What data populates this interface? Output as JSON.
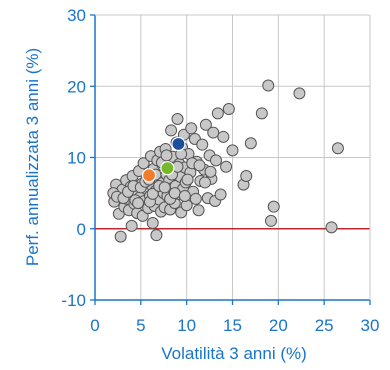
{
  "chart_data": {
    "type": "scatter",
    "xlabel": "Volatilità 3 anni (%)",
    "ylabel": "Perf. annualizzata 3 anni (%)",
    "xlim": [
      0,
      30
    ],
    "ylim": [
      -10,
      30
    ],
    "xticks": [
      0,
      5,
      10,
      15,
      20,
      25,
      30
    ],
    "yticks": [
      -10,
      0,
      10,
      20,
      30
    ],
    "grid": true,
    "reference_line": {
      "y": 0,
      "color": "#c0282d"
    },
    "colors": {
      "axis": "#1a75c9",
      "grid": "#c8c8c8",
      "point_fill": "#c8c8c8",
      "point_stroke": "#555555"
    },
    "series": [
      {
        "color": "#c8c8c8",
        "points": [
          [
            2.1,
            3.8
          ],
          [
            2.3,
            6.2
          ],
          [
            2.5,
            4.9
          ],
          [
            2.6,
            2.1
          ],
          [
            2.8,
            -1.1
          ],
          [
            3.0,
            5.5
          ],
          [
            3.2,
            3.1
          ],
          [
            3.4,
            6.8
          ],
          [
            3.5,
            4.2
          ],
          [
            3.7,
            2.6
          ],
          [
            3.9,
            5.9
          ],
          [
            4.0,
            0.4
          ],
          [
            4.1,
            7.4
          ],
          [
            4.3,
            3.5
          ],
          [
            4.5,
            5.1
          ],
          [
            4.6,
            2.2
          ],
          [
            4.8,
            8.1
          ],
          [
            4.9,
            4.4
          ],
          [
            5.1,
            6.3
          ],
          [
            5.2,
            1.8
          ],
          [
            5.3,
            9.2
          ],
          [
            5.4,
            3.9
          ],
          [
            5.6,
            5.6
          ],
          [
            5.7,
            7.1
          ],
          [
            5.8,
            2.9
          ],
          [
            6.0,
            4.6
          ],
          [
            6.1,
            10.2
          ],
          [
            6.2,
            6.1
          ],
          [
            6.3,
            0.8
          ],
          [
            6.4,
            8.4
          ],
          [
            6.5,
            3.2
          ],
          [
            6.6,
            5.3
          ],
          [
            6.7,
            -0.9
          ],
          [
            6.8,
            9.6
          ],
          [
            6.9,
            7.2
          ],
          [
            7.0,
            4.1
          ],
          [
            7.1,
            10.8
          ],
          [
            7.2,
            2.4
          ],
          [
            7.3,
            6.4
          ],
          [
            7.4,
            8.9
          ],
          [
            7.5,
            5.0
          ],
          [
            7.6,
            3.0
          ],
          [
            7.7,
            11.2
          ],
          [
            7.8,
            7.6
          ],
          [
            7.9,
            4.6
          ],
          [
            8.0,
            9.8
          ],
          [
            8.1,
            6.8
          ],
          [
            8.2,
            2.7
          ],
          [
            8.3,
            13.8
          ],
          [
            8.4,
            5.7
          ],
          [
            8.5,
            10.1
          ],
          [
            8.6,
            8.2
          ],
          [
            8.7,
            3.6
          ],
          [
            8.8,
            6.0
          ],
          [
            8.9,
            12.1
          ],
          [
            9.0,
            15.4
          ],
          [
            9.1,
            4.9
          ],
          [
            9.2,
            9.1
          ],
          [
            9.3,
            7.3
          ],
          [
            9.4,
            2.3
          ],
          [
            9.5,
            11.4
          ],
          [
            9.6,
            5.6
          ],
          [
            9.7,
            13.2
          ],
          [
            9.8,
            8.6
          ],
          [
            9.9,
            6.5
          ],
          [
            10.0,
            3.3
          ],
          [
            10.2,
            10.5
          ],
          [
            10.4,
            7.9
          ],
          [
            10.5,
            14.1
          ],
          [
            10.7,
            5.2
          ],
          [
            10.9,
            12.6
          ],
          [
            11.1,
            9.4
          ],
          [
            11.3,
            2.6
          ],
          [
            11.5,
            6.7
          ],
          [
            11.7,
            11.8
          ],
          [
            11.9,
            8.3
          ],
          [
            12.1,
            14.6
          ],
          [
            12.3,
            4.3
          ],
          [
            12.5,
            10.3
          ],
          [
            12.7,
            7.0
          ],
          [
            12.9,
            13.5
          ],
          [
            13.1,
            3.9
          ],
          [
            13.4,
            16.2
          ],
          [
            13.7,
            4.8
          ],
          [
            14.0,
            12.9
          ],
          [
            14.3,
            8.7
          ],
          [
            14.6,
            16.8
          ],
          [
            15.0,
            11.0
          ],
          [
            16.2,
            6.2
          ],
          [
            16.5,
            7.4
          ],
          [
            17.0,
            12.0
          ],
          [
            18.2,
            16.2
          ],
          [
            18.9,
            20.1
          ],
          [
            19.2,
            1.1
          ],
          [
            19.5,
            3.1
          ],
          [
            22.3,
            19.0
          ],
          [
            25.8,
            0.2
          ],
          [
            26.5,
            11.3
          ],
          [
            2.0,
            5.0
          ],
          [
            2.4,
            4.5
          ],
          [
            3.1,
            4.3
          ],
          [
            3.6,
            5.2
          ],
          [
            4.2,
            6.0
          ],
          [
            4.4,
            4.0
          ],
          [
            4.7,
            3.6
          ],
          [
            5.0,
            5.8
          ],
          [
            5.5,
            6.6
          ],
          [
            5.9,
            6.9
          ],
          [
            6.0,
            3.8
          ],
          [
            6.3,
            4.9
          ],
          [
            6.6,
            7.6
          ],
          [
            7.0,
            6.0
          ],
          [
            7.3,
            9.3
          ],
          [
            7.6,
            5.8
          ],
          [
            7.8,
            10.3
          ],
          [
            8.2,
            4.2
          ],
          [
            8.4,
            7.6
          ],
          [
            8.7,
            5.0
          ],
          [
            9.0,
            8.7
          ],
          [
            9.4,
            10.5
          ],
          [
            9.8,
            4.6
          ],
          [
            10.1,
            6.9
          ],
          [
            10.6,
            9.2
          ],
          [
            11.0,
            4.2
          ],
          [
            11.4,
            8.9
          ],
          [
            12.0,
            6.5
          ],
          [
            12.6,
            8.0
          ],
          [
            13.2,
            9.6
          ]
        ]
      },
      {
        "color": "#ef7d2c",
        "points": [
          [
            5.9,
            7.5
          ]
        ]
      },
      {
        "color": "#76b82a",
        "points": [
          [
            7.9,
            8.5
          ]
        ]
      },
      {
        "color": "#1b4f9c",
        "points": [
          [
            9.1,
            11.9
          ]
        ]
      }
    ]
  }
}
